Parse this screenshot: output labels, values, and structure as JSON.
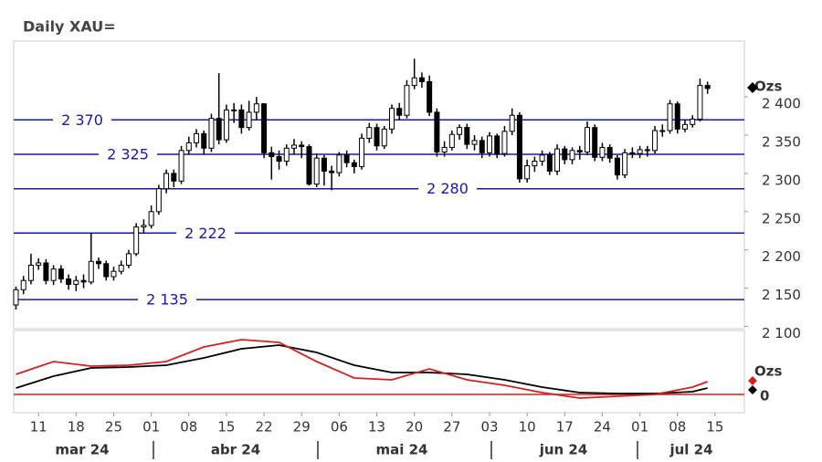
{
  "chart_data": [
    {
      "type": "candlestick",
      "title": "Daily XAU=",
      "unit_label": "Ozs",
      "x": [
        -3,
        -2,
        -1,
        0,
        1,
        2,
        3,
        4,
        5,
        6,
        7,
        8,
        9,
        10,
        11,
        12,
        13,
        14,
        15,
        16,
        17,
        18,
        19,
        20,
        21,
        22,
        23,
        24,
        25,
        26,
        27,
        28,
        29,
        30,
        31,
        32,
        33,
        34,
        35,
        36,
        37,
        38,
        39,
        40,
        41,
        42,
        43,
        44,
        45,
        46,
        47,
        48,
        49,
        50,
        51,
        52,
        53,
        54,
        55,
        56,
        57,
        58,
        59,
        60,
        61,
        62,
        63,
        64,
        65,
        66,
        67,
        68,
        69,
        70,
        71,
        72,
        73,
        74,
        75,
        76,
        77,
        78,
        79,
        80,
        81,
        82,
        83,
        84,
        85,
        86,
        87,
        88,
        89
      ],
      "open": [
        2128,
        2148,
        2160,
        2180,
        2183,
        2160,
        2175,
        2162,
        2155,
        2160,
        2158,
        2185,
        2182,
        2165,
        2172,
        2180,
        2195,
        2230,
        2232,
        2250,
        2280,
        2300,
        2290,
        2330,
        2340,
        2352,
        2333,
        2372,
        2344,
        2383,
        2383,
        2360,
        2380,
        2391,
        2327,
        2322,
        2316,
        2333,
        2337,
        2335,
        2286,
        2320,
        2303,
        2301,
        2324,
        2314,
        2309,
        2346,
        2360,
        2336,
        2358,
        2385,
        2376,
        2415,
        2425,
        2420,
        2380,
        2328,
        2334,
        2351,
        2360,
        2338,
        2343,
        2327,
        2349,
        2326,
        2355,
        2376,
        2293,
        2310,
        2316,
        2324,
        2303,
        2332,
        2318,
        2330,
        2328,
        2360,
        2321,
        2334,
        2320,
        2298,
        2327,
        2326,
        2331,
        2330,
        2356,
        2356,
        2391,
        2358,
        2364,
        2371,
        2415
      ],
      "high": [
        2152,
        2166,
        2195,
        2189,
        2188,
        2180,
        2180,
        2168,
        2166,
        2168,
        2222,
        2190,
        2186,
        2178,
        2186,
        2200,
        2235,
        2240,
        2258,
        2285,
        2305,
        2305,
        2336,
        2348,
        2358,
        2356,
        2378,
        2431,
        2390,
        2392,
        2390,
        2395,
        2400,
        2392,
        2335,
        2330,
        2338,
        2345,
        2342,
        2338,
        2326,
        2324,
        2310,
        2328,
        2330,
        2318,
        2352,
        2366,
        2365,
        2362,
        2390,
        2392,
        2422,
        2450,
        2432,
        2428,
        2385,
        2342,
        2356,
        2364,
        2365,
        2350,
        2348,
        2354,
        2352,
        2362,
        2385,
        2380,
        2318,
        2322,
        2330,
        2328,
        2338,
        2336,
        2334,
        2336,
        2368,
        2364,
        2340,
        2338,
        2324,
        2332,
        2334,
        2336,
        2336,
        2362,
        2364,
        2396,
        2394,
        2370,
        2376,
        2424,
        2420
      ],
      "low": [
        2122,
        2142,
        2155,
        2174,
        2155,
        2154,
        2157,
        2148,
        2146,
        2150,
        2155,
        2175,
        2160,
        2160,
        2168,
        2176,
        2192,
        2222,
        2228,
        2246,
        2274,
        2282,
        2286,
        2325,
        2334,
        2325,
        2328,
        2338,
        2340,
        2366,
        2352,
        2356,
        2370,
        2320,
        2292,
        2305,
        2310,
        2325,
        2320,
        2284,
        2282,
        2284,
        2278,
        2296,
        2308,
        2300,
        2305,
        2340,
        2330,
        2332,
        2352,
        2370,
        2372,
        2410,
        2412,
        2375,
        2322,
        2322,
        2330,
        2344,
        2332,
        2330,
        2320,
        2322,
        2320,
        2322,
        2350,
        2288,
        2288,
        2302,
        2310,
        2298,
        2298,
        2312,
        2312,
        2318,
        2324,
        2316,
        2316,
        2314,
        2292,
        2294,
        2320,
        2320,
        2322,
        2326,
        2348,
        2352,
        2352,
        2354,
        2360,
        2368,
        2404
      ],
      "close": [
        2148,
        2160,
        2180,
        2183,
        2160,
        2175,
        2162,
        2155,
        2160,
        2158,
        2185,
        2182,
        2165,
        2172,
        2180,
        2195,
        2230,
        2232,
        2250,
        2280,
        2300,
        2290,
        2330,
        2340,
        2352,
        2333,
        2372,
        2344,
        2383,
        2383,
        2360,
        2380,
        2391,
        2327,
        2322,
        2316,
        2333,
        2337,
        2335,
        2286,
        2320,
        2303,
        2301,
        2324,
        2314,
        2309,
        2346,
        2360,
        2336,
        2358,
        2385,
        2376,
        2415,
        2425,
        2420,
        2380,
        2328,
        2334,
        2351,
        2360,
        2338,
        2343,
        2327,
        2349,
        2326,
        2355,
        2376,
        2293,
        2310,
        2316,
        2324,
        2303,
        2332,
        2318,
        2330,
        2328,
        2360,
        2321,
        2334,
        2320,
        2298,
        2327,
        2326,
        2331,
        2330,
        2356,
        2356,
        2391,
        2358,
        2364,
        2371,
        2415,
        2411
      ],
      "up_color": "#ffffff",
      "down_color": "#000000",
      "levels": [
        {
          "value": 2370,
          "label": "2 370"
        },
        {
          "value": 2325,
          "label": "2 325"
        },
        {
          "value": 2280,
          "label": "2 280"
        },
        {
          "value": 2222,
          "label": "2 222"
        },
        {
          "value": 2135,
          "label": "2 135"
        }
      ],
      "level_color": "#1a1aa0",
      "xlim": [
        -3.3,
        93.9
      ],
      "ylim": [
        2097,
        2473
      ],
      "yticks": [
        {
          "value": 2100,
          "label": "2 100"
        },
        {
          "value": 2150,
          "label": "2 150"
        },
        {
          "value": 2200,
          "label": "2 200"
        },
        {
          "value": 2250,
          "label": "2 250"
        },
        {
          "value": 2300,
          "label": "2 300"
        },
        {
          "value": 2350,
          "label": "2 350"
        },
        {
          "value": 2400,
          "label": "2 400"
        }
      ],
      "xticks": [
        {
          "value": 0,
          "label": "11"
        },
        {
          "value": 5,
          "label": "18"
        },
        {
          "value": 10,
          "label": "25"
        },
        {
          "value": 15,
          "label": "01"
        },
        {
          "value": 20,
          "label": "08"
        },
        {
          "value": 25,
          "label": "15"
        },
        {
          "value": 30,
          "label": "22"
        },
        {
          "value": 35,
          "label": "29"
        },
        {
          "value": 40,
          "label": "06"
        },
        {
          "value": 45,
          "label": "13"
        },
        {
          "value": 50,
          "label": "20"
        },
        {
          "value": 55,
          "label": "27"
        },
        {
          "value": 60,
          "label": "03"
        },
        {
          "value": 65,
          "label": "10"
        },
        {
          "value": 70,
          "label": "17"
        },
        {
          "value": 75,
          "label": "24"
        },
        {
          "value": 80,
          "label": "01"
        },
        {
          "value": 85,
          "label": "08"
        },
        {
          "value": 90,
          "label": "15"
        }
      ],
      "months": [
        "mar 24",
        "abr 24",
        "mai 24",
        "jun 24",
        "jul 24"
      ]
    },
    {
      "type": "line",
      "unit_label": "Ozs",
      "x": [
        -3,
        2,
        7,
        12,
        17,
        22,
        27,
        32,
        37,
        42,
        47,
        52,
        57,
        62,
        67,
        72,
        77,
        82,
        87,
        89
      ],
      "series": [
        {
          "color": "#000000",
          "values": [
            7,
            20,
            29,
            30,
            32,
            40,
            50,
            54,
            46,
            32,
            24,
            24,
            22,
            16,
            8,
            2,
            1,
            1,
            3,
            7
          ]
        },
        {
          "color": "#d42020",
          "values": [
            22,
            36,
            31,
            32,
            36,
            52,
            60,
            57,
            36,
            18,
            16,
            28,
            16,
            10,
            2,
            -4,
            -2,
            0,
            8,
            14
          ]
        }
      ],
      "xlim": [
        -3.3,
        93.9
      ],
      "ylim": [
        -20,
        70
      ],
      "yticks": [
        0
      ],
      "zero_color": "#d42020"
    }
  ]
}
